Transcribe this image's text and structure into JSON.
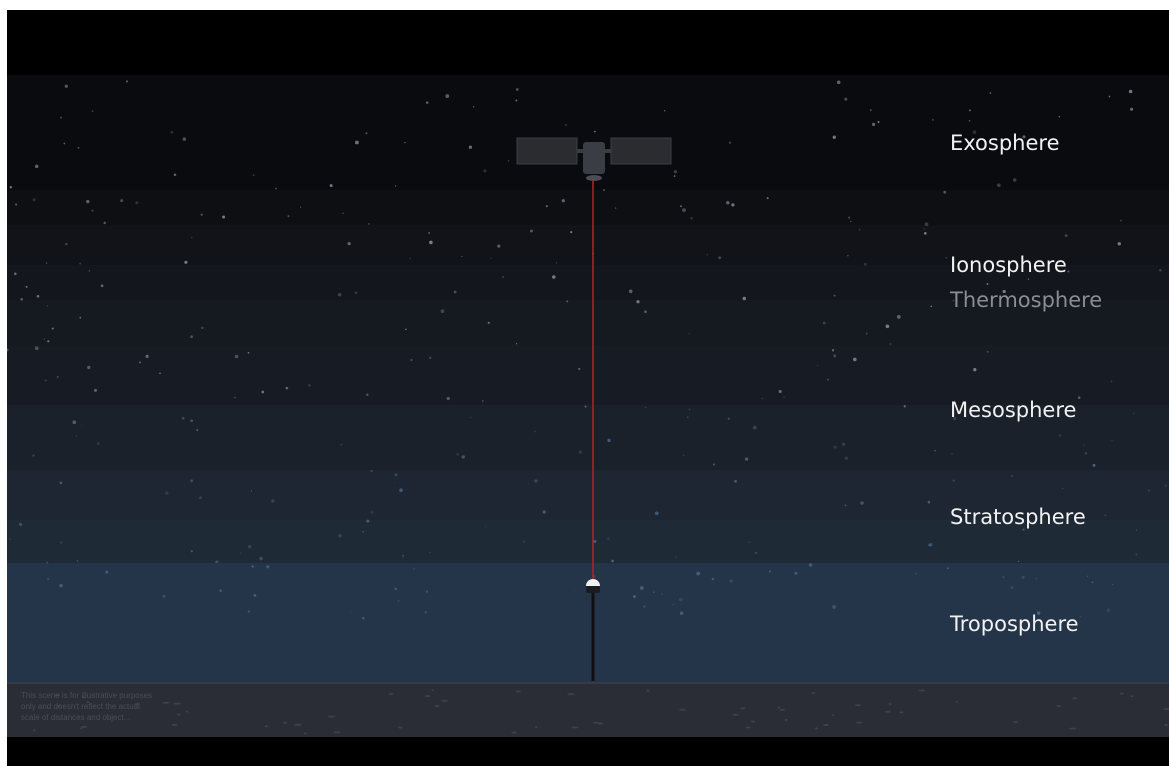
{
  "layers": [
    "Exosphere",
    "Ionosphere",
    "Thermosphere",
    "Mesosphere",
    "Stratosphere",
    "Troposphere"
  ],
  "disclaimer": [
    "This scene is for illustrative purposes",
    "only and doesn't reflect the actual",
    "scale of distances and object..."
  ]
}
